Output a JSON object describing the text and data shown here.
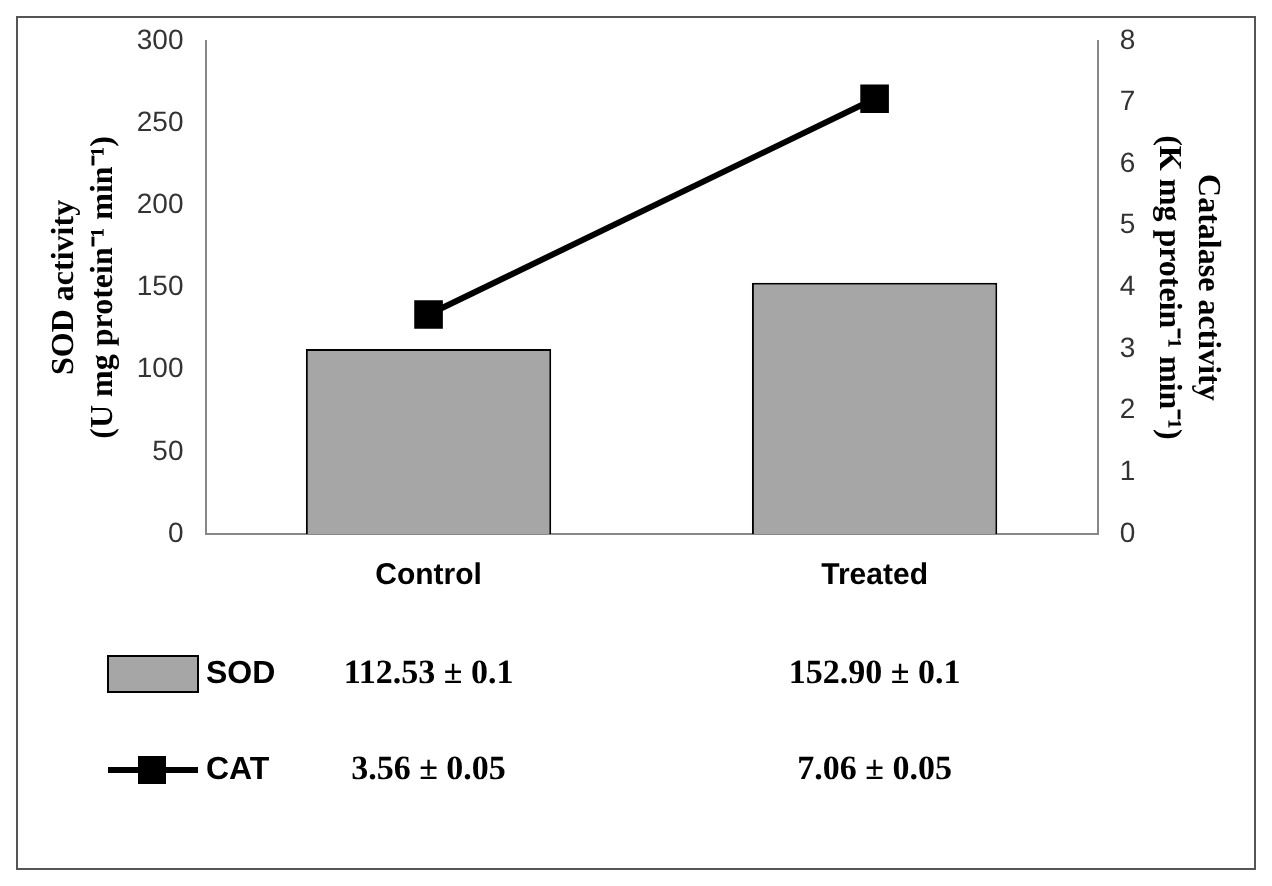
{
  "chart_data": {
    "type": "bar",
    "categories": [
      "Control",
      "Treated"
    ],
    "series": [
      {
        "name": "SOD",
        "color": "#a6a6a6",
        "values": [
          112.53,
          152.9
        ],
        "value_labels": [
          "112.53 ± 0.1",
          "152.90 ± 0.1"
        ]
      },
      {
        "name": "CAT",
        "type": "line",
        "axis": "y2",
        "color": "#000000",
        "values": [
          3.56,
          7.06
        ],
        "value_labels": [
          "3.56 ± 0.05",
          "7.06 ± 0.05"
        ]
      }
    ],
    "ylabel": "SOD activity\n(U mg protein⁻¹ min⁻¹)",
    "y2label": "Catalase activity\n(K mg protein⁻¹ min⁻¹)",
    "ylim": [
      0,
      300
    ],
    "yticks": [
      0,
      50,
      100,
      150,
      200,
      250,
      300
    ],
    "y2lim": [
      0,
      8
    ],
    "y2ticks": [
      0,
      1,
      2,
      3,
      4,
      5,
      6,
      7,
      8
    ],
    "legend": "bottom",
    "marker": "square",
    "line_style": "solid"
  }
}
